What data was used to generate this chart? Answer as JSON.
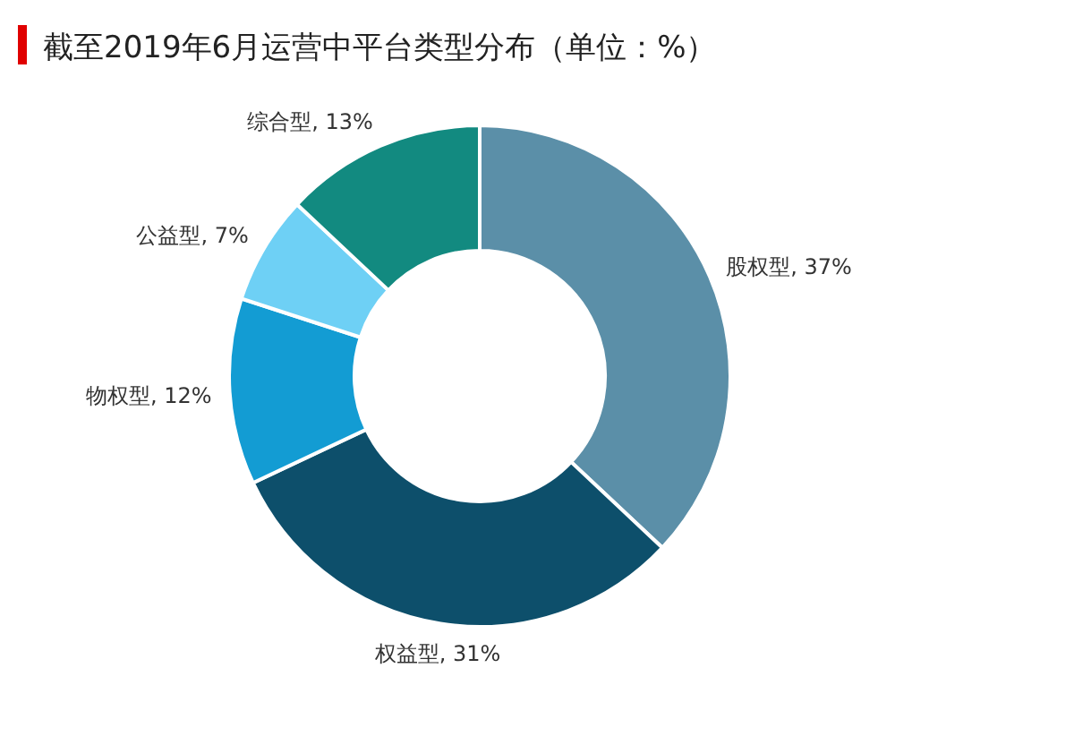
{
  "chart_data": {
    "type": "donut",
    "title": "截至2019年6月运营中平台类型分布（单位：%）",
    "categories": [
      "股权型",
      "权益型",
      "物权型",
      "公益型",
      "综合型"
    ],
    "values": [
      37,
      31,
      12,
      7,
      13
    ],
    "value_labels": [
      "37%",
      "31%",
      "12%",
      "7%",
      "13%"
    ],
    "colors": [
      "#5b8fa8",
      "#0d4f6b",
      "#139cd3",
      "#6ed0f5",
      "#128a80"
    ]
  }
}
